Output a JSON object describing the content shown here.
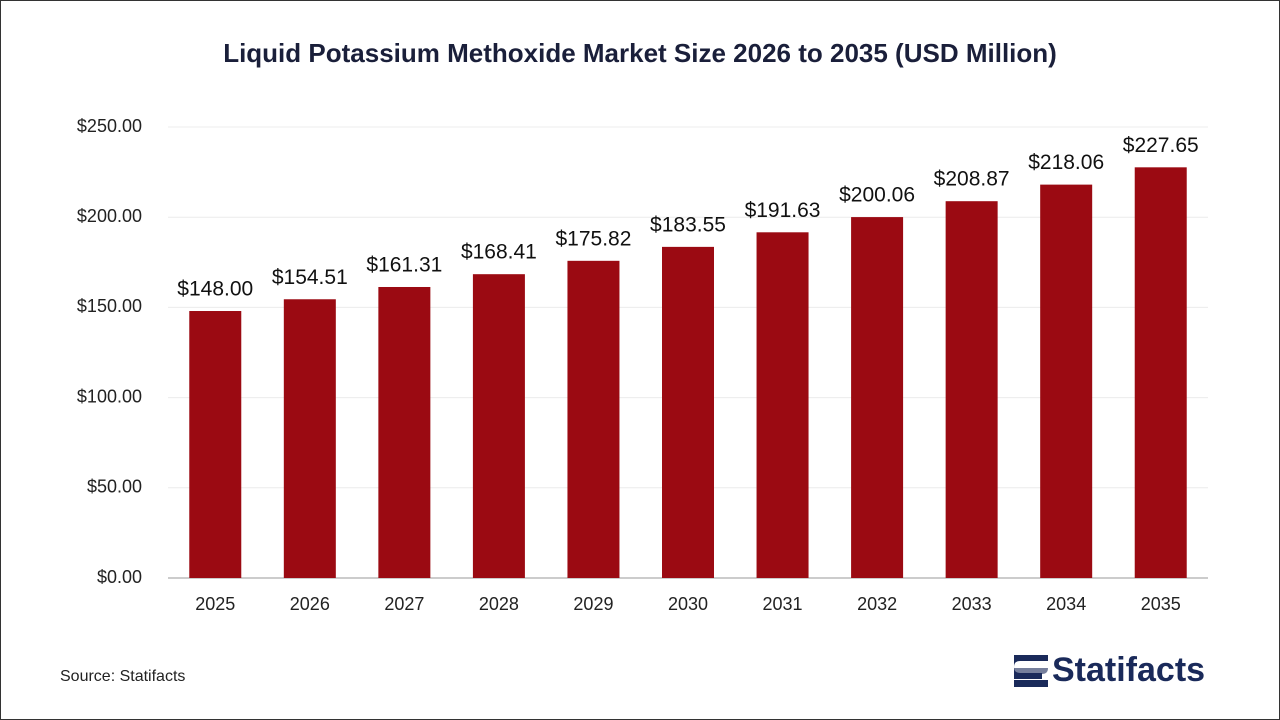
{
  "chart_data": {
    "type": "bar",
    "title": "Liquid Potassium Methoxide Market Size 2026 to 2035 (USD Million)",
    "categories": [
      "2025",
      "2026",
      "2027",
      "2028",
      "2029",
      "2030",
      "2031",
      "2032",
      "2033",
      "2034",
      "2035"
    ],
    "values": [
      148.0,
      154.51,
      161.31,
      168.41,
      175.82,
      183.55,
      191.63,
      200.06,
      208.87,
      218.06,
      227.65
    ],
    "value_labels": [
      "$148.00",
      "$154.51",
      "$161.31",
      "$168.41",
      "$175.82",
      "$183.55",
      "$191.63",
      "$200.06",
      "$208.87",
      "$218.06",
      "$227.65"
    ],
    "color": "#9b0a12",
    "ylim": [
      0,
      250
    ],
    "yticks": [
      {
        "value": 0,
        "label": "$0.00"
      },
      {
        "value": 50,
        "label": "$50.00"
      },
      {
        "value": 100,
        "label": "$100.00"
      },
      {
        "value": 150,
        "label": "$150.00"
      },
      {
        "value": 200,
        "label": "$200.00"
      },
      {
        "value": 250,
        "label": "$250.00"
      }
    ],
    "grid": true,
    "source": "Source: Statifacts",
    "logo": "Statifacts"
  }
}
